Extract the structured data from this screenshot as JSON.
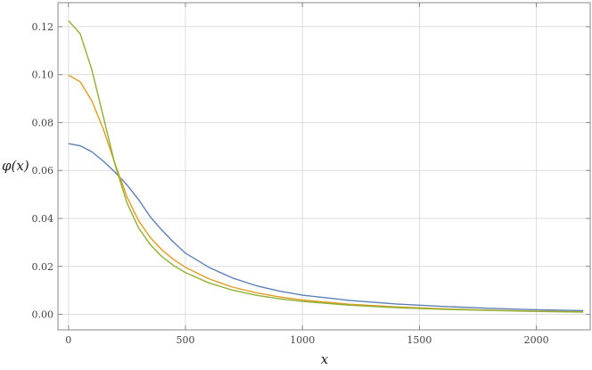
{
  "chart_data": {
    "type": "line",
    "xlabel": "x",
    "ylabel": "φ(x)",
    "xlim": [
      -45,
      2230
    ],
    "ylim": [
      -0.0065,
      0.13
    ],
    "x_ticks": [
      0,
      500,
      1000,
      1500,
      2000
    ],
    "x_tick_labels": [
      "0",
      "500",
      "1000",
      "1500",
      "2000"
    ],
    "y_ticks": [
      0.0,
      0.02,
      0.04,
      0.06,
      0.08,
      0.1,
      0.12
    ],
    "y_tick_labels": [
      "0.00",
      "0.02",
      "0.04",
      "0.06",
      "0.08",
      "0.10",
      "0.12"
    ],
    "grid": true,
    "frame": true,
    "series": [
      {
        "color": "#5e81b5",
        "x": [
          0,
          50,
          100,
          150,
          200,
          250,
          300,
          350,
          400,
          450,
          500,
          600,
          700,
          800,
          900,
          1000,
          1200,
          1400,
          1600,
          1800,
          2000,
          2200
        ],
        "y": [
          0.0712,
          0.0703,
          0.0678,
          0.0638,
          0.0592,
          0.054,
          0.0478,
          0.0406,
          0.035,
          0.03,
          0.0255,
          0.0196,
          0.0152,
          0.012,
          0.0097,
          0.008,
          0.0058,
          0.0043,
          0.0033,
          0.0025,
          0.0019,
          0.0015
        ]
      },
      {
        "color": "#e19c24",
        "x": [
          0,
          50,
          100,
          150,
          200,
          250,
          300,
          350,
          400,
          450,
          500,
          600,
          700,
          800,
          900,
          1000,
          1200,
          1400,
          1600,
          1800,
          2000,
          2200
        ],
        "y": [
          0.0998,
          0.097,
          0.089,
          0.077,
          0.0625,
          0.049,
          0.039,
          0.032,
          0.0268,
          0.0228,
          0.0196,
          0.0148,
          0.0114,
          0.009,
          0.0073,
          0.006,
          0.0042,
          0.0031,
          0.0023,
          0.0017,
          0.0013,
          0.001
        ]
      },
      {
        "color": "#8fb032",
        "x": [
          0,
          50,
          100,
          150,
          200,
          250,
          300,
          350,
          400,
          450,
          500,
          600,
          700,
          800,
          900,
          1000,
          1200,
          1400,
          1600,
          1800,
          2000,
          2200
        ],
        "y": [
          0.1225,
          0.117,
          0.102,
          0.082,
          0.062,
          0.0465,
          0.036,
          0.029,
          0.024,
          0.0203,
          0.0174,
          0.0131,
          0.0101,
          0.008,
          0.0065,
          0.0054,
          0.0038,
          0.0028,
          0.0021,
          0.0016,
          0.0012,
          0.0009
        ]
      }
    ]
  }
}
